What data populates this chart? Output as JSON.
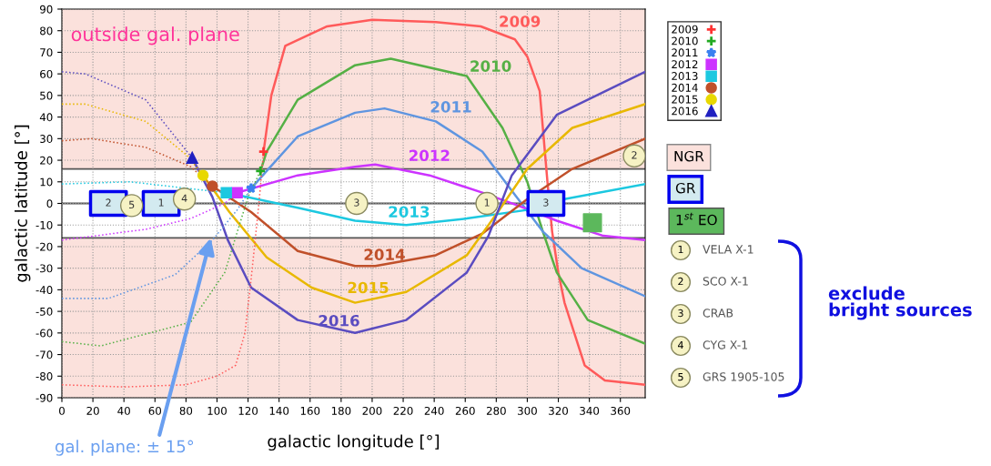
{
  "chart_data": {
    "type": "line",
    "xlabel": "galactic longitude [°]",
    "ylabel": "galactic latitude [°]",
    "xlim": [
      0,
      376
    ],
    "ylim": [
      -90,
      90
    ],
    "xticks": [
      0,
      20,
      40,
      60,
      80,
      100,
      120,
      140,
      160,
      180,
      200,
      220,
      240,
      260,
      280,
      300,
      320,
      340,
      360
    ],
    "yticks": [
      -90,
      -80,
      -70,
      -60,
      -50,
      -40,
      -30,
      -20,
      -10,
      0,
      10,
      20,
      30,
      40,
      50,
      60,
      70,
      80,
      90
    ],
    "grid": true,
    "legend": "top right",
    "bands": [
      {
        "axis": "y",
        "from": 16,
        "to": 90,
        "label": "NGR",
        "color": "#fbe1dc"
      },
      {
        "axis": "y",
        "from": -90,
        "to": -16,
        "color": "#fbe1dc"
      }
    ],
    "ref_lines": [
      {
        "axis": "y",
        "value": 16,
        "color": "#555555"
      },
      {
        "axis": "y",
        "value": 0,
        "color": "#555555"
      },
      {
        "axis": "y",
        "value": -16,
        "color": "#555555"
      }
    ],
    "series": [
      {
        "name": "2009",
        "color": "#ff5a5a",
        "x": [
          130,
          135,
          144,
          171,
          200,
          241,
          270,
          292,
          300,
          308,
          313,
          316,
          320,
          324,
          337,
          350,
          376
        ],
        "values": [
          24,
          50,
          73,
          82,
          85,
          84,
          82,
          76,
          68,
          52,
          10,
          -13,
          -32,
          -46,
          -75,
          -82,
          -84
        ]
      },
      {
        "name": "2010",
        "color": "#55b045",
        "x": [
          128,
          132,
          152,
          189,
          212,
          261,
          284,
          300,
          310,
          319,
          339,
          376
        ],
        "values": [
          15,
          24,
          48,
          64,
          67,
          59,
          35,
          10,
          -13,
          -32,
          -54,
          -65
        ]
      },
      {
        "name": "2011",
        "color": "#5f95e0",
        "x": [
          122,
          132,
          152,
          189,
          208,
          241,
          271,
          292,
          310,
          335,
          376
        ],
        "values": [
          7,
          15,
          31,
          42,
          44,
          38,
          24,
          4,
          -13,
          -30,
          -43
        ]
      },
      {
        "name": "2012",
        "color": "#cc33ff",
        "x": [
          113,
          152,
          189,
          202,
          237,
          271,
          294,
          319,
          349,
          376
        ],
        "values": [
          5,
          13,
          17,
          18,
          13,
          5,
          -1,
          -8,
          -15,
          -17
        ]
      },
      {
        "name": "2013",
        "color": "#1cc8e0",
        "x": [
          106,
          152,
          189,
          222,
          261,
          300,
          324,
          376
        ],
        "values": [
          5,
          -2,
          -8,
          -10,
          -7,
          -3,
          2,
          9
        ]
      },
      {
        "name": "2014",
        "color": "#c0502a",
        "x": [
          97,
          122,
          152,
          189,
          202,
          241,
          271,
          300,
          329,
          376
        ],
        "values": [
          8,
          -4,
          -22,
          -29,
          -29,
          -24,
          -14,
          2,
          16,
          30
        ]
      },
      {
        "name": "2015",
        "color": "#e8b800",
        "x": [
          91,
          108,
          132,
          161,
          189,
          222,
          261,
          281,
          300,
          329,
          376
        ],
        "values": [
          13,
          -4,
          -25,
          -39,
          -46,
          -41,
          -24,
          -4,
          16,
          35,
          46
        ]
      },
      {
        "name": "2016",
        "color": "#5a4cc0",
        "x": [
          84,
          97,
          107,
          122,
          152,
          189,
          222,
          261,
          275,
          290,
          319,
          376
        ],
        "values": [
          21,
          3,
          -17,
          -39,
          -54,
          -60,
          -54,
          -32,
          -15,
          13,
          41,
          61
        ]
      },
      {
        "color": "#ff5a5a",
        "line_style": "dotted",
        "x": [
          0,
          40,
          80,
          100,
          112,
          118,
          122,
          127,
          130
        ],
        "values": [
          -84,
          -85,
          -84,
          -80,
          -75,
          -60,
          -35,
          0,
          24
        ]
      },
      {
        "color": "#55b045",
        "line_style": "dotted",
        "x": [
          0,
          25,
          83,
          105,
          120,
          128
        ],
        "values": [
          -64,
          -66,
          -55,
          -32,
          3,
          15
        ]
      },
      {
        "color": "#5f95e0",
        "line_style": "dotted",
        "x": [
          0,
          30,
          73,
          97,
          113,
          122
        ],
        "values": [
          -44,
          -44,
          -33,
          -17,
          -3,
          7
        ]
      },
      {
        "color": "#cc33ff",
        "line_style": "dotted",
        "x": [
          0,
          54,
          83,
          105,
          113
        ],
        "values": [
          -17,
          -12,
          -7,
          0,
          5
        ]
      },
      {
        "color": "#1cc8e0",
        "line_style": "dotted",
        "x": [
          0,
          44,
          93,
          106
        ],
        "values": [
          9,
          10,
          6,
          5
        ]
      },
      {
        "color": "#c0502a",
        "line_style": "dotted",
        "x": [
          0,
          19,
          54,
          83,
          97
        ],
        "values": [
          29,
          30,
          26,
          17,
          8
        ]
      },
      {
        "color": "#e8b800",
        "line_style": "dotted",
        "x": [
          0,
          15,
          54,
          81,
          91
        ],
        "values": [
          46,
          46,
          38,
          22,
          13
        ]
      },
      {
        "color": "#5a4cc0",
        "line_style": "dotted",
        "x": [
          0,
          15,
          54,
          84
        ],
        "values": [
          61,
          60,
          48,
          21
        ]
      },
      {
        "type": "scatter",
        "color": "#ff3333",
        "marker": "cross",
        "x": [
          130
        ],
        "values": [
          24
        ]
      },
      {
        "type": "scatter",
        "color": "#22aa22",
        "marker": "cross",
        "x": [
          128
        ],
        "values": [
          15
        ]
      },
      {
        "type": "scatter",
        "color": "#3a80f0",
        "marker": "star",
        "x": [
          122
        ],
        "values": [
          7
        ]
      },
      {
        "type": "scatter",
        "color": "#cc33ff",
        "marker": "square",
        "x": [
          113
        ],
        "values": [
          5
        ]
      },
      {
        "type": "scatter",
        "color": "#1cc8e0",
        "marker": "square",
        "x": [
          106
        ],
        "values": [
          5
        ]
      },
      {
        "type": "scatter",
        "color": "#c0502a",
        "marker": "circle",
        "x": [
          97
        ],
        "values": [
          8
        ]
      },
      {
        "type": "scatter",
        "color": "#e8d800",
        "marker": "circle",
        "x": [
          91
        ],
        "values": [
          13
        ]
      },
      {
        "type": "scatter",
        "color": "#2020c0",
        "marker": "triangle",
        "x": [
          84
        ],
        "values": [
          21
        ]
      },
      {
        "type": "scatter",
        "name": "GR",
        "color": "#d3eaf0",
        "marker": "square",
        "x": [
          30,
          64,
          312
        ],
        "values": [
          0,
          0,
          0
        ]
      },
      {
        "type": "scatter",
        "color": "#f6f2c4",
        "marker": "circle",
        "x": [
          45,
          79,
          190,
          274,
          369
        ],
        "values": [
          -1,
          2,
          0,
          0,
          22
        ]
      },
      {
        "type": "scatter",
        "name": "1$^{st}$ EO",
        "color": "#5cb85c",
        "marker": "square",
        "x": [
          342
        ],
        "values": [
          -9
        ]
      }
    ],
    "annotations": [
      "2009",
      "2010",
      "2011",
      "2012",
      "2013",
      "2014",
      "2015",
      "2016",
      "outside gal. plane",
      {
        "text": "gal. plane: ± 15°",
        "x": 96,
        "y": -16
      },
      {
        "text": "2",
        "x": 30,
        "y": 0
      },
      {
        "text": "1",
        "x": 64,
        "y": 0
      },
      {
        "text": "3",
        "x": 312,
        "y": 0
      },
      {
        "text": "5",
        "x": 45,
        "y": -1
      },
      {
        "text": "4",
        "x": 79,
        "y": 2
      },
      {
        "text": "3",
        "x": 190,
        "y": 0
      },
      {
        "text": "1",
        "x": 274,
        "y": 0
      },
      {
        "text": "2",
        "x": 369,
        "y": 22
      },
      "1",
      "VELA X-1",
      "2",
      "SCO X-1",
      "3",
      "CRAB",
      "4",
      "CYG X-1",
      "5",
      "GRS 1905-105",
      "exclude\nbright sources"
    ]
  }
}
